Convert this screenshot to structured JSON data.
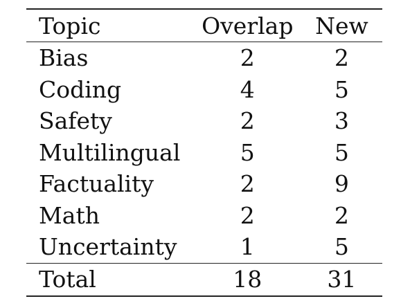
{
  "table": {
    "headers": {
      "topic": "Topic",
      "overlap": "Overlap",
      "new": "New"
    },
    "rows": [
      {
        "topic": "Bias",
        "overlap": "2",
        "new": "2"
      },
      {
        "topic": "Coding",
        "overlap": "4",
        "new": "5"
      },
      {
        "topic": "Safety",
        "overlap": "2",
        "new": "3"
      },
      {
        "topic": "Multilingual",
        "overlap": "5",
        "new": "5"
      },
      {
        "topic": "Factuality",
        "overlap": "2",
        "new": "9"
      },
      {
        "topic": "Math",
        "overlap": "2",
        "new": "2"
      },
      {
        "topic": "Uncertainty",
        "overlap": "1",
        "new": "5"
      }
    ],
    "total": {
      "topic": "Total",
      "overlap": "18",
      "new": "31"
    }
  }
}
